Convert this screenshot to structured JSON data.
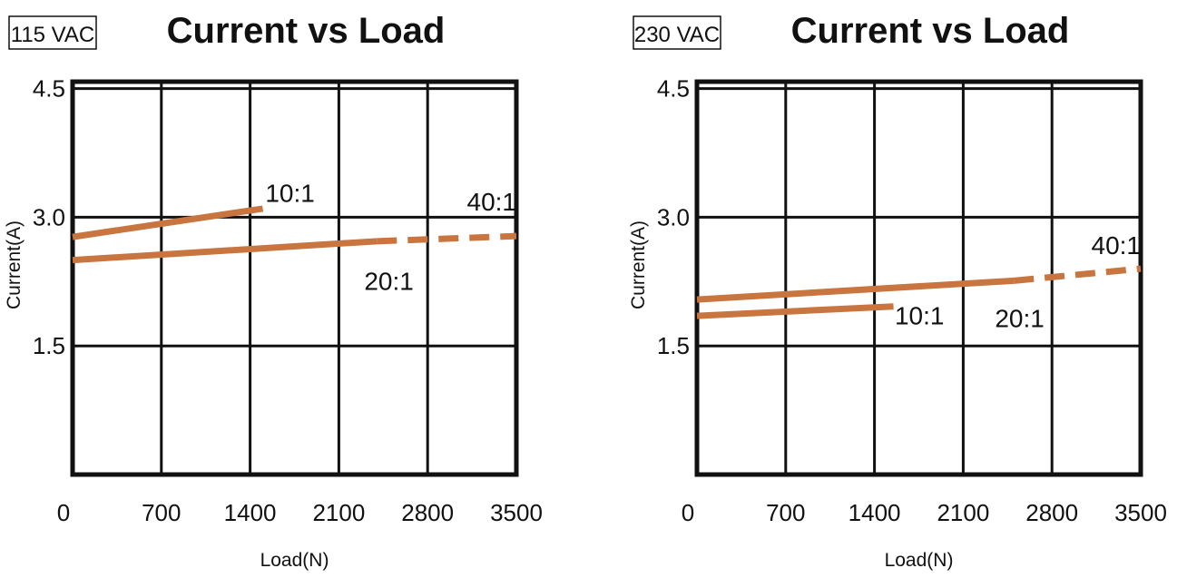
{
  "chart_data": [
    {
      "type": "line",
      "title": "Current vs Load",
      "condition": "115 VAC",
      "xlabel": "Load(N)",
      "ylabel": "Current(A)",
      "xlim": [
        0,
        3500
      ],
      "ylim": [
        0,
        4.5
      ],
      "x_ticks": [
        "0",
        "700",
        "1400",
        "2100",
        "2800",
        "3500"
      ],
      "y_ticks": [
        "1.5",
        "3.0",
        "4.5"
      ],
      "grid": true,
      "series": [
        {
          "name": "10:1",
          "color": "#C8753F",
          "x": [
            0,
            1500
          ],
          "y": [
            2.77,
            3.1
          ]
        },
        {
          "name": "20:1",
          "color": "#C8753F",
          "x": [
            0,
            2400
          ],
          "y": [
            2.5,
            2.72
          ]
        },
        {
          "name": "40:1",
          "color": "#C8753F",
          "x": [
            2400,
            3500
          ],
          "y": [
            2.72,
            2.78
          ],
          "dashed": true
        }
      ]
    },
    {
      "type": "line",
      "title": "Current vs Load",
      "condition": "230 VAC",
      "xlabel": "Load(N)",
      "ylabel": "Current(A)",
      "xlim": [
        0,
        3500
      ],
      "ylim": [
        0,
        4.5
      ],
      "x_ticks": [
        "0",
        "700",
        "1400",
        "2100",
        "2800",
        "3500"
      ],
      "y_ticks": [
        "1.5",
        "3.0",
        "4.5"
      ],
      "grid": true,
      "series": [
        {
          "name": "10:1",
          "color": "#C8753F",
          "x": [
            0,
            1550
          ],
          "y": [
            1.85,
            1.96
          ]
        },
        {
          "name": "20:1",
          "color": "#C8753F",
          "x": [
            0,
            2500
          ],
          "y": [
            2.04,
            2.26
          ]
        },
        {
          "name": "40:1",
          "color": "#C8753F",
          "x": [
            2500,
            3500
          ],
          "y": [
            2.26,
            2.4
          ],
          "dashed": true
        }
      ]
    }
  ]
}
